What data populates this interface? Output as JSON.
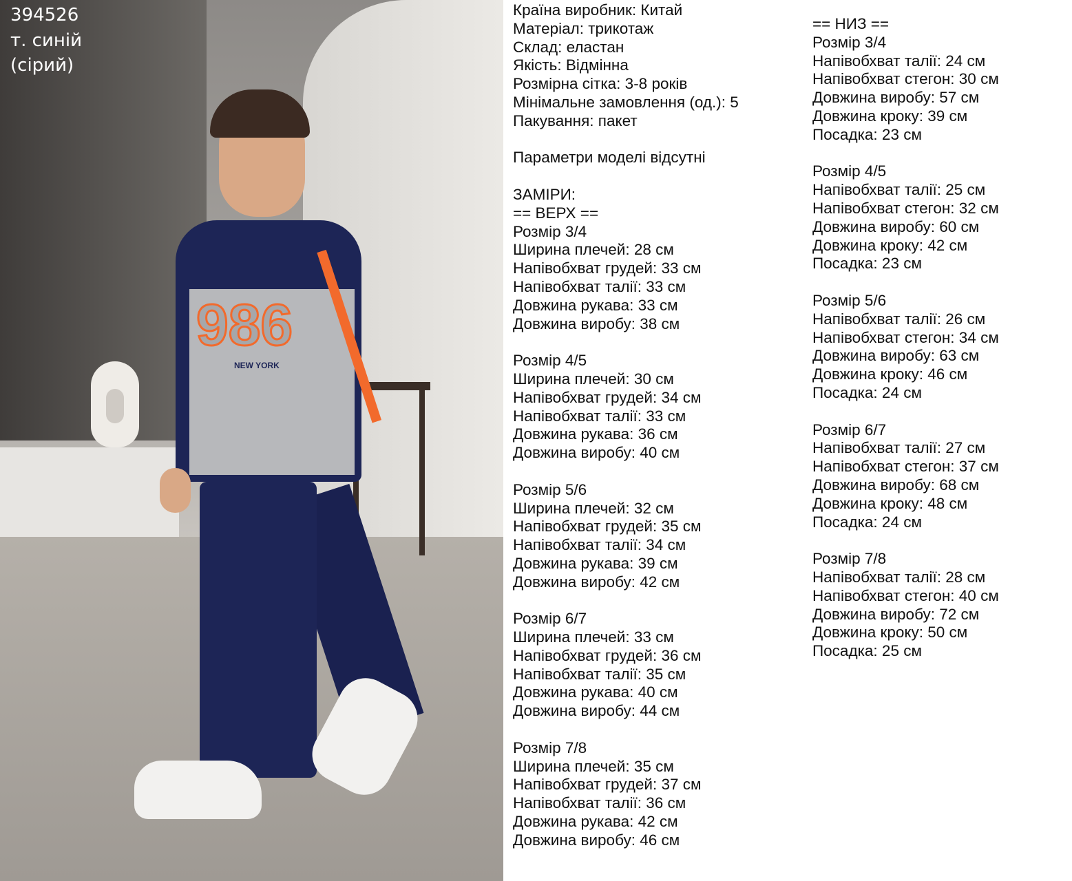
{
  "photo_labels": {
    "article": "394526",
    "color": "т. синій",
    "color_alt": "(сірий)"
  },
  "specs_left": [
    "Країна виробник: Китай",
    "Матеріал: трикотаж",
    "Склад: еластан",
    "Якість: Відмінна",
    "Розмірна сітка: 3-8 років",
    "Мінімальне замовлення (од.): 5",
    "Пакування: пакет",
    "",
    "Параметри моделі відсутні",
    "",
    "ЗАМІРИ:",
    "== ВЕРХ ==",
    "Розмір 3/4",
    "Ширина плечей: 28 см",
    "Напівобхват грудей: 33 см",
    "Напівобхват талії: 33 см",
    "Довжина рукава: 33 см",
    "Довжина виробу: 38 см",
    "",
    "Розмір 4/5",
    "Ширина плечей: 30 см",
    "Напівобхват грудей: 34 см",
    "Напівобхват талії: 33 см",
    "Довжина рукава: 36 см",
    "Довжина виробу: 40 см",
    "",
    "Розмір 5/6",
    "Ширина плечей: 32 см",
    "Напівобхват грудей: 35 см",
    "Напівобхват талії: 34 см",
    "Довжина рукава: 39 см",
    "Довжина виробу: 42 см",
    "",
    "Розмір 6/7",
    "Ширина плечей: 33 см",
    "Напівобхват грудей: 36 см",
    "Напівобхват талії: 35 см",
    "Довжина рукава: 40 см",
    "Довжина виробу: 44 см",
    "",
    "Розмір 7/8",
    "Ширина плечей: 35 см",
    "Напівобхват грудей: 37 см",
    "Напівобхват талії: 36 см",
    "Довжина рукава: 42 см",
    "Довжина виробу: 46 см"
  ],
  "specs_right": [
    "== НИЗ ==",
    "Розмір 3/4",
    "Напівобхват талії: 24 см",
    "Напівобхват стегон: 30 см",
    "Довжина виробу: 57 см",
    "Довжина кроку: 39 см",
    "Посадка: 23 см",
    "",
    "Розмір 4/5",
    "Напівобхват талії: 25 см",
    "Напівобхват стегон: 32 см",
    "Довжина виробу: 60 см",
    "Довжина кроку: 42 см",
    "Посадка: 23 см",
    "",
    "Розмір 5/6",
    "Напівобхват талії: 26 см",
    "Напівобхват стегон: 34 см",
    "Довжина виробу: 63 см",
    "Довжина кроку: 46 см",
    "Посадка: 24 см",
    "",
    "Розмір 6/7",
    "Напівобхват талії: 27 см",
    "Напівобхват стегон: 37 см",
    "Довжина виробу: 68 см",
    "Довжина кроку: 48 см",
    "Посадка: 24 см",
    "",
    "Розмір 7/8",
    "Напівобхват талії: 28 см",
    "Напівобхват стегон: 40 см",
    "Довжина виробу: 72 см",
    "Довжина кроку: 50 см",
    "Посадка: 25 см"
  ],
  "garment_print": {
    "number": "986",
    "city": "NEW YORK"
  },
  "colors": {
    "navy": "#1d2556",
    "orange": "#f26a2c",
    "grey": "#b7b8bb"
  }
}
